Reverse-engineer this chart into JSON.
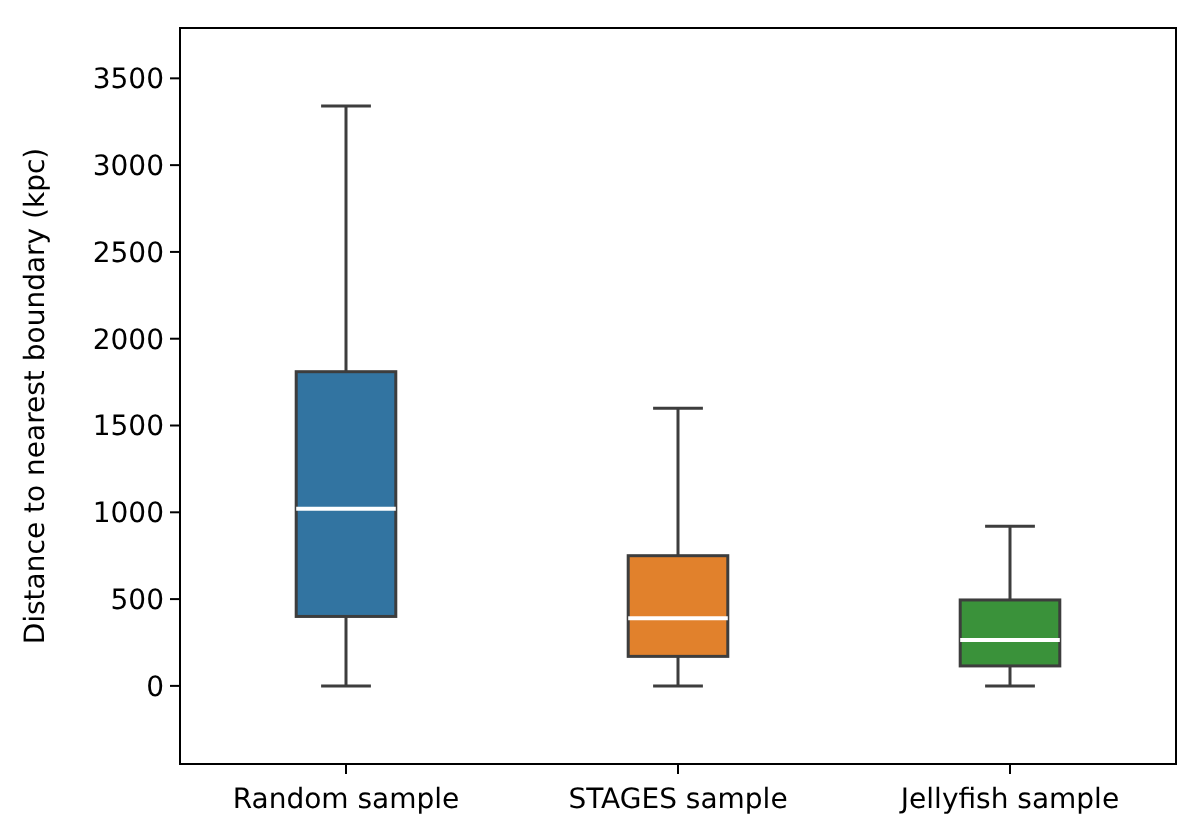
{
  "chart_data": {
    "type": "box",
    "ylabel": "Distance to nearest boundary (kpc)",
    "categories": [
      "Random sample",
      "STAGES sample",
      "Jellyfish sample"
    ],
    "colors": [
      "#3274a1",
      "#e1812c",
      "#3a923a"
    ],
    "boxes": [
      {
        "low": 0,
        "q1": 400,
        "median": 1020,
        "q3": 1810,
        "high": 3340
      },
      {
        "low": 0,
        "q1": 170,
        "median": 390,
        "q3": 750,
        "high": 1600
      },
      {
        "low": 0,
        "q1": 115,
        "median": 265,
        "q3": 495,
        "high": 920
      }
    ],
    "ylim": [
      -450,
      3790
    ],
    "yticks": [
      0,
      500,
      1000,
      1500,
      2000,
      2500,
      3000,
      3500
    ],
    "grid": false
  }
}
